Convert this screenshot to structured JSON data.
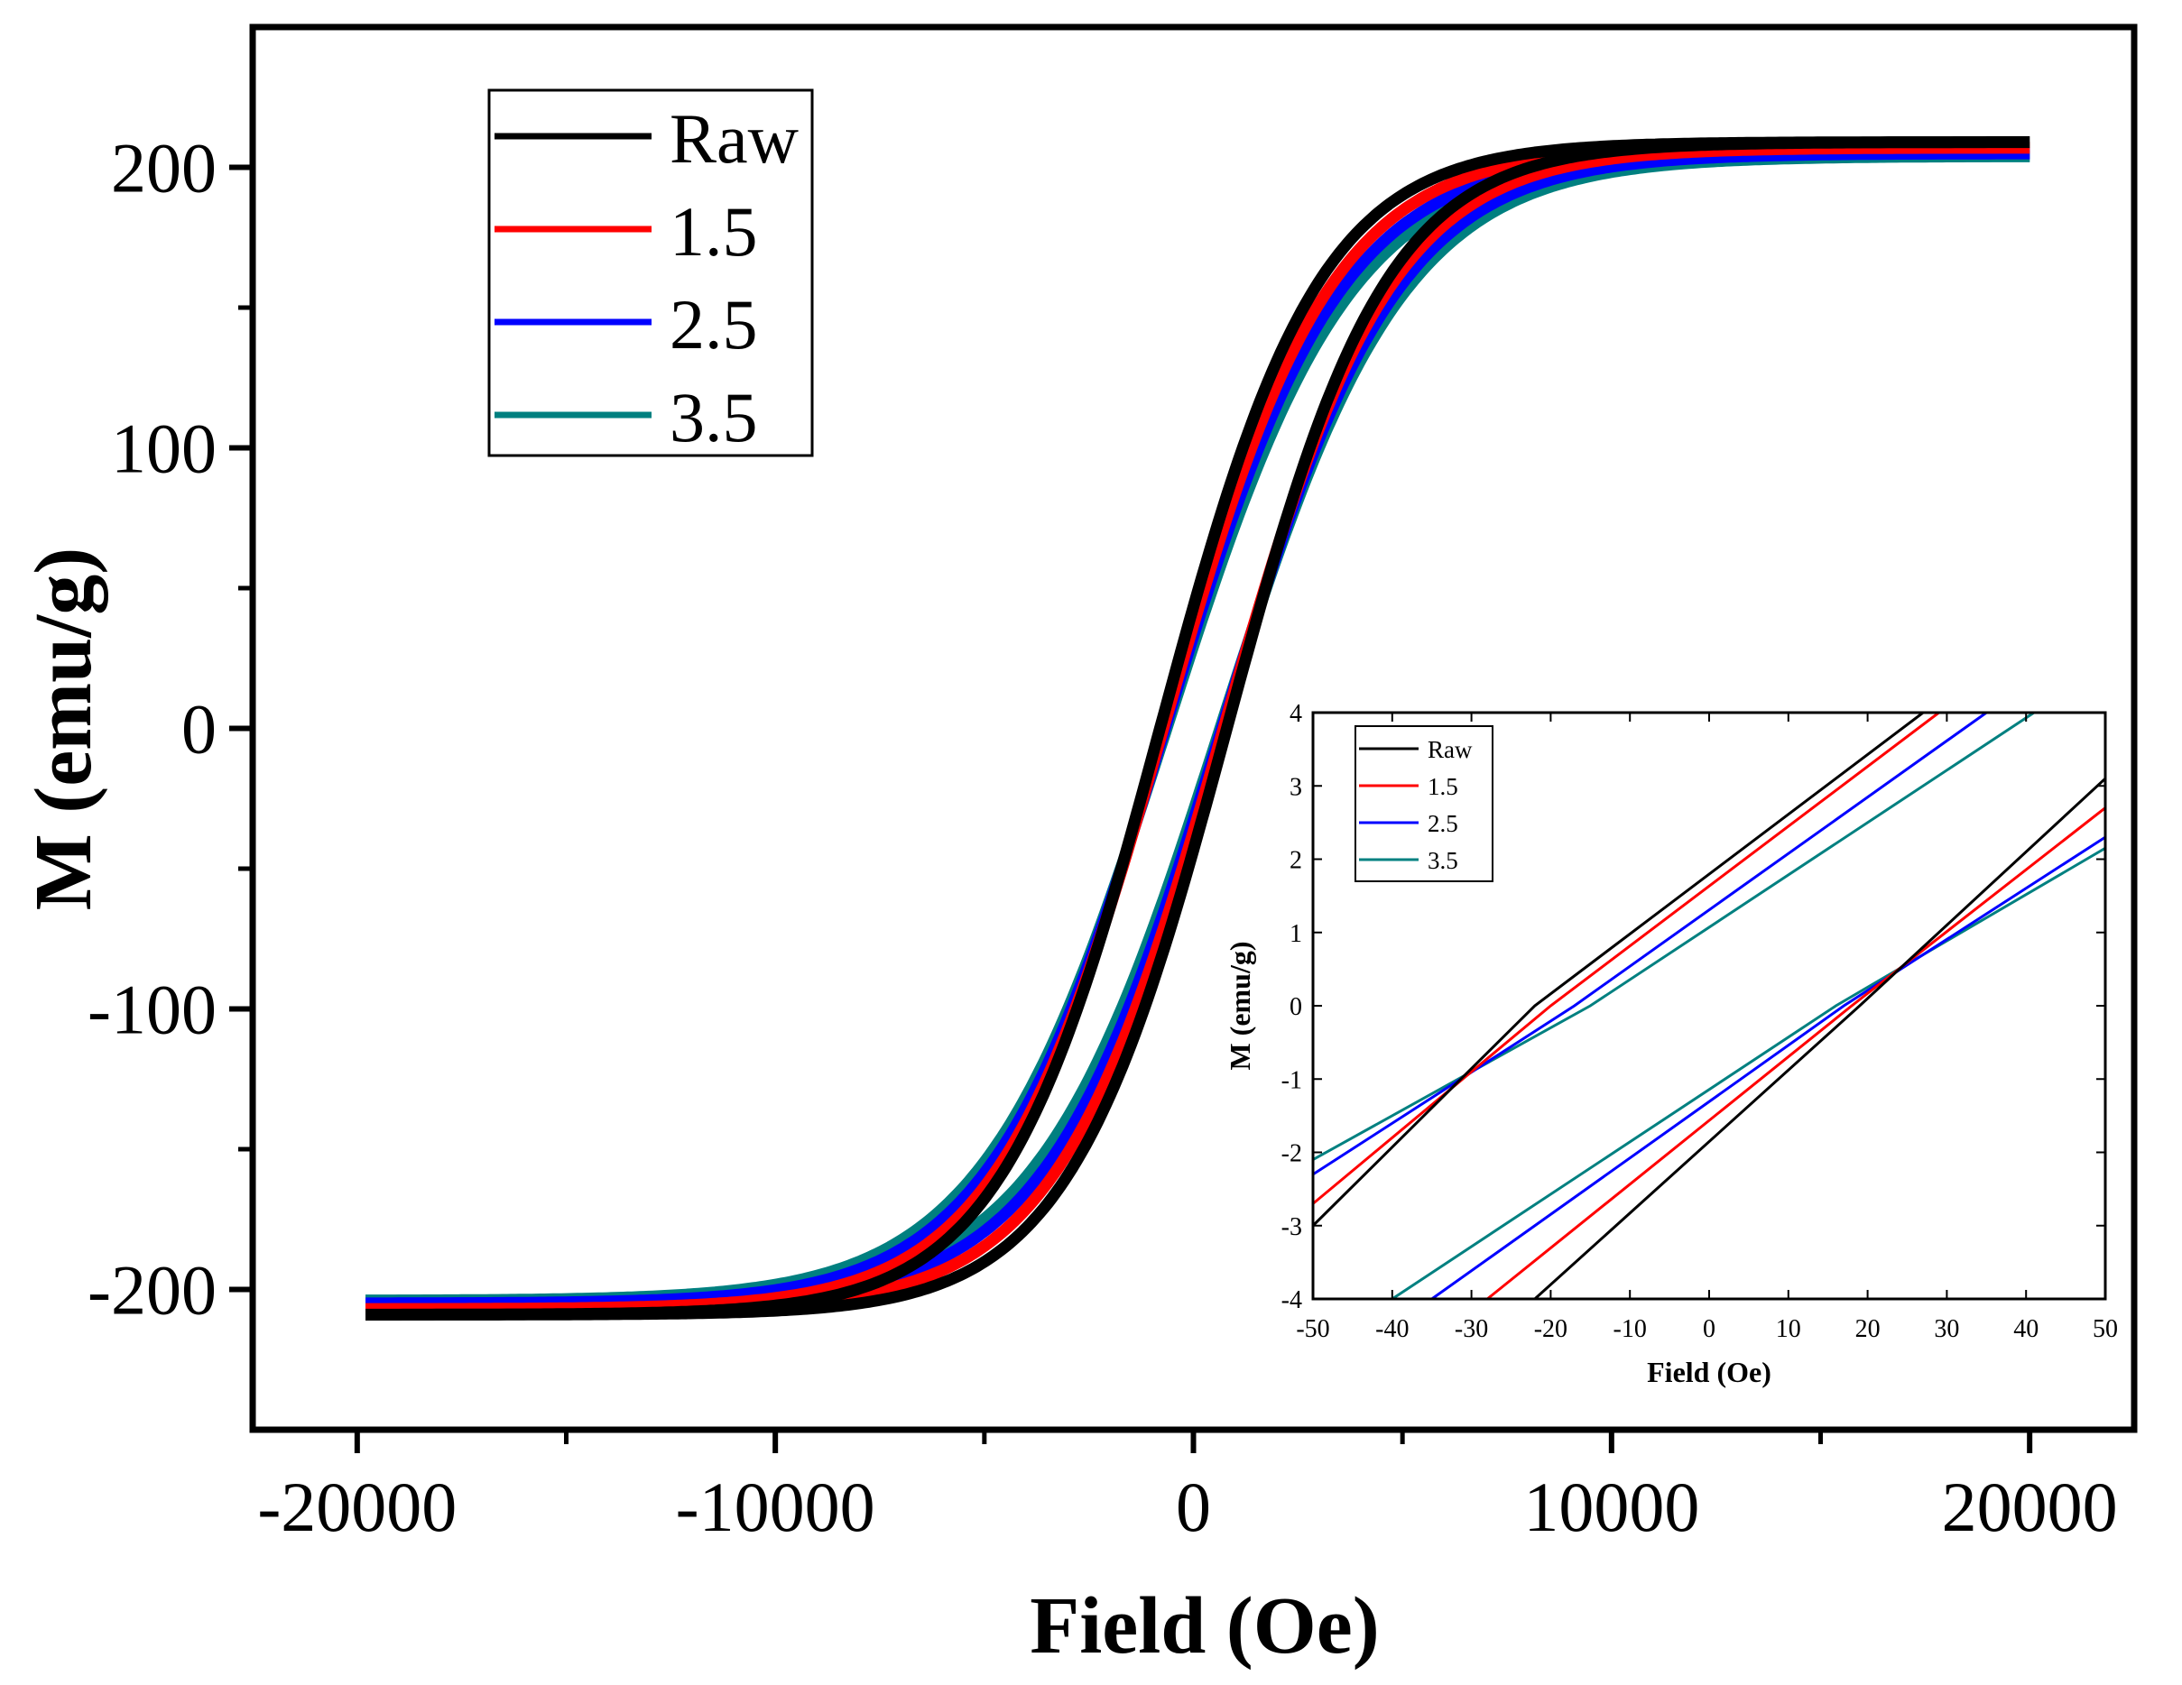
{
  "chart_data": [
    {
      "id": "main",
      "type": "line",
      "title": "",
      "xlabel": "Field (Oe)",
      "ylabel": "M (emu/g)",
      "xlim": [
        -22500,
        22500
      ],
      "ylim": [
        -250,
        250
      ],
      "xticks": [
        -20000,
        -10000,
        0,
        10000,
        20000
      ],
      "xtick_labels": [
        "-20000",
        "-10000",
        "0",
        "10000",
        "20000"
      ],
      "yticks": [
        -200,
        -100,
        0,
        100,
        200
      ],
      "ytick_labels": [
        "-200",
        "-100",
        "0",
        "100",
        "200"
      ],
      "legend_position": "top-left",
      "x_range_data": [
        -19800,
        20000
      ],
      "curve_model": "M = Ms * tanh((H ± Hc) / H0)",
      "series": [
        {
          "name": "Raw",
          "color": "#000000",
          "Ms": 209,
          "H0": 3800,
          "Hc": 20
        },
        {
          "name": "1.5",
          "color": "#ff0000",
          "Ms": 207,
          "H0": 4000,
          "Hc": 18
        },
        {
          "name": "2.5",
          "color": "#0000ff",
          "Ms": 205,
          "H0": 4200,
          "Hc": 17
        },
        {
          "name": "3.5",
          "color": "#008080",
          "Ms": 204,
          "H0": 4400,
          "Hc": 16
        }
      ]
    },
    {
      "id": "inset",
      "type": "line",
      "title": "",
      "xlabel": "Field (Oe)",
      "ylabel": "M (emu/g)",
      "xlim": [
        -50,
        50
      ],
      "ylim": [
        -4,
        4
      ],
      "xticks": [
        -50,
        -40,
        -30,
        -20,
        -10,
        0,
        10,
        20,
        30,
        40,
        50
      ],
      "xtick_labels": [
        "-50",
        "-40",
        "-30",
        "-20",
        "-10",
        "0",
        "10",
        "20",
        "30",
        "40",
        "50"
      ],
      "yticks": [
        -4,
        -3,
        -2,
        -1,
        0,
        1,
        2,
        3,
        4
      ],
      "ytick_labels": [
        "-4",
        "-3",
        "-2",
        "-1",
        "0",
        "1",
        "2",
        "3",
        "4"
      ],
      "legend_position": "top-left",
      "series": [
        {
          "name": "Raw",
          "color": "#000000",
          "upper_branch": [
            [
              -50,
              -3.0
            ],
            [
              -22,
              0
            ],
            [
              27,
              4.0
            ]
          ],
          "lower_branch": [
            [
              -22,
              -4.0
            ],
            [
              19,
              0
            ],
            [
              50,
              3.1
            ]
          ]
        },
        {
          "name": "1.5",
          "color": "#ff0000",
          "upper_branch": [
            [
              -50,
              -2.7
            ],
            [
              -20,
              0
            ],
            [
              29,
              4.0
            ]
          ],
          "lower_branch": [
            [
              -28,
              -4.0
            ],
            [
              18,
              0
            ],
            [
              50,
              2.7
            ]
          ]
        },
        {
          "name": "2.5",
          "color": "#0000ff",
          "upper_branch": [
            [
              -50,
              -2.3
            ],
            [
              -17,
              0
            ],
            [
              35,
              4.0
            ]
          ],
          "lower_branch": [
            [
              -35,
              -4.0
            ],
            [
              17,
              0
            ],
            [
              50,
              2.3
            ]
          ]
        },
        {
          "name": "3.5",
          "color": "#008080",
          "upper_branch": [
            [
              -50,
              -2.1
            ],
            [
              -15,
              0
            ],
            [
              41,
              4.0
            ]
          ],
          "lower_branch": [
            [
              -40,
              -4.0
            ],
            [
              16,
              0
            ],
            [
              50,
              2.15
            ]
          ]
        }
      ]
    }
  ]
}
